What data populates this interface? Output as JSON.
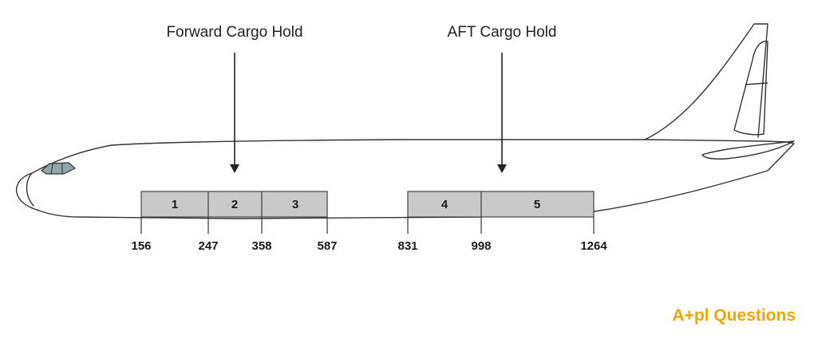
{
  "holds": {
    "forward": {
      "label": "Forward Cargo Hold"
    },
    "aft": {
      "label": "AFT Cargo Hold"
    }
  },
  "compartments": [
    {
      "number": "1",
      "from": 156,
      "to": 247
    },
    {
      "number": "2",
      "from": 247,
      "to": 358
    },
    {
      "number": "3",
      "from": 358,
      "to": 587
    },
    {
      "number": "4",
      "from": 831,
      "to": 998
    },
    {
      "number": "5",
      "from": 998,
      "to": 1264
    }
  ],
  "stations": [
    "156",
    "247",
    "358",
    "587",
    "831",
    "998",
    "1264"
  ],
  "logo": {
    "prefix": "A",
    "glyph": "+",
    "suffix": "pl Questions"
  },
  "colors": {
    "compartment_fill": "#c9c9c9",
    "compartment_stroke": "#444444",
    "window_fill": "#8fa6ad",
    "logo": "#f0a500"
  }
}
